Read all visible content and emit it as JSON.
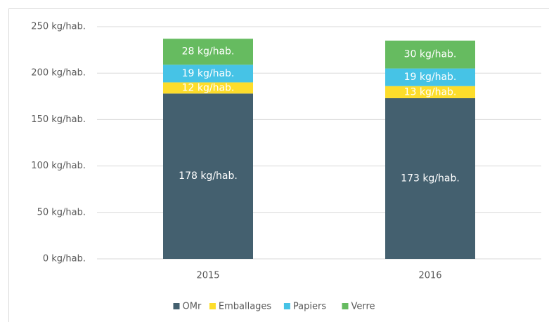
{
  "chart_data": {
    "type": "stacked_bar",
    "categories": [
      "2015",
      "2016"
    ],
    "series": [
      {
        "name": "OMr",
        "color": "#44606f",
        "values": [
          178,
          173
        ],
        "value_labels": [
          "178 kg/hab.",
          "173 kg/hab."
        ]
      },
      {
        "name": "Emballages",
        "color": "#fddd2b",
        "values": [
          12,
          13
        ],
        "value_labels": [
          "12 kg/hab.",
          "13 kg/hab."
        ]
      },
      {
        "name": "Papiers",
        "color": "#46c3e6",
        "values": [
          19,
          19
        ],
        "value_labels": [
          "19 kg/hab.",
          "19 kg/hab."
        ]
      },
      {
        "name": "Verre",
        "color": "#66bb60",
        "values": [
          28,
          30
        ],
        "value_labels": [
          "28 kg/hab.",
          "30 kg/hab."
        ]
      }
    ],
    "ylim": [
      0,
      250
    ],
    "yticks": [
      {
        "value": 0,
        "label": "0 kg/hab."
      },
      {
        "value": 50,
        "label": "50 kg/hab."
      },
      {
        "value": 100,
        "label": "100 kg/hab."
      },
      {
        "value": 150,
        "label": "150 kg/hab."
      },
      {
        "value": 200,
        "label": "200 kg/hab."
      },
      {
        "value": 250,
        "label": "250 kg/hab."
      }
    ],
    "grid": true,
    "legend": "bottom"
  }
}
